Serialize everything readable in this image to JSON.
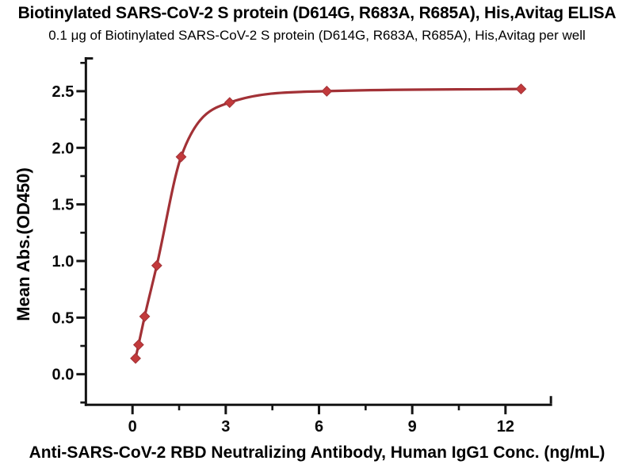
{
  "chart_data": {
    "type": "scatter",
    "title": "Biotinylated SARS-CoV-2 S protein (D614G, R683A, R685A), His,Avitag ELISA",
    "subtitle": "0.1 μg of Biotinylated SARS-CoV-2 S protein (D614G, R683A, R685A), His,Avitag per well",
    "xlabel": "Anti-SARS-CoV-2 RBD Neutralizing Antibody, Human IgG1 Conc. (ng/mL)",
    "ylabel": "Mean Abs.(OD450)",
    "x": [
      0.098,
      0.195,
      0.391,
      0.781,
      1.563,
      3.125,
      6.25,
      12.5
    ],
    "y": [
      0.14,
      0.26,
      0.51,
      0.96,
      1.92,
      2.4,
      2.5,
      2.52
    ],
    "marker": "diamond",
    "curve": "sigmoidal fit through points",
    "xlim": [
      -1.5,
      13.5
    ],
    "ylim": [
      -0.27,
      2.8
    ],
    "x_major_ticks": [
      0,
      3,
      6,
      9,
      12
    ],
    "x_major_tick_labels": [
      "0",
      "3",
      "6",
      "9",
      "12"
    ],
    "x_minor_ticks": [
      1.5,
      4.5,
      7.5,
      10.5
    ],
    "y_major_ticks": [
      0.0,
      0.5,
      1.0,
      1.5,
      2.0,
      2.5
    ],
    "y_major_tick_labels": [
      "0.0",
      "0.5",
      "1.0",
      "1.5",
      "2.0",
      "2.5"
    ],
    "y_minor_ticks": [
      -0.25,
      0.25,
      0.75,
      1.25,
      1.75,
      2.25,
      2.75
    ],
    "grid": false,
    "legend": "none",
    "colors": {
      "curve": "#a23136",
      "marker": "#c23a3c",
      "axis": "#141414",
      "text": "#000000",
      "background": "#ffffff"
    }
  }
}
